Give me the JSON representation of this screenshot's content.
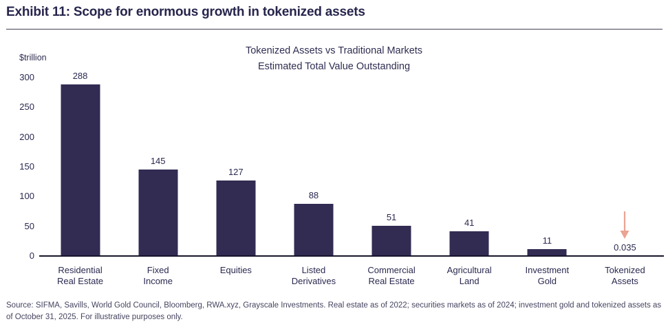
{
  "header": {
    "title": "Exhibit 11: Scope for enormous growth in tokenized assets"
  },
  "chart": {
    "unit_label": "$trillion",
    "title_line1": "Tokenized Assets vs Traditional Markets",
    "title_line2": "Estimated Total Value Outstanding"
  },
  "chart_data": {
    "type": "bar",
    "title": "Tokenized Assets vs Traditional Markets — Estimated Total Value Outstanding",
    "xlabel": "",
    "ylabel": "$trillion",
    "ylim": [
      0,
      300
    ],
    "yticks": [
      0,
      50,
      100,
      150,
      200,
      250,
      300
    ],
    "grid": false,
    "legend": false,
    "bar_color": "#322b52",
    "categories": [
      "Residential Real Estate",
      "Fixed Income",
      "Equities",
      "Listed Derivatives",
      "Commercial Real Estate",
      "Agricultural Land",
      "Investment Gold",
      "Tokenized Assets"
    ],
    "category_labels": [
      "Residential\nReal Estate",
      "Fixed\nIncome",
      "Equities",
      "Listed\nDerivatives",
      "Commercial\nReal Estate",
      "Agricultural\nLand",
      "Investment\nGold",
      "Tokenized\nAssets"
    ],
    "values": [
      288,
      145,
      127,
      88,
      51,
      41,
      11,
      0.035
    ],
    "value_labels": [
      "288",
      "145",
      "127",
      "88",
      "51",
      "41",
      "11",
      "0.035"
    ],
    "annotation": {
      "type": "down-arrow",
      "target_category": "Tokenized Assets",
      "target_index": 7,
      "color": "#eba392"
    }
  },
  "footer": {
    "source": "Source: SIFMA, Savills, World Gold Council, Bloomberg, RWA.xyz, Grayscale Investments. Real estate as of 2022; securities markets as of 2024; investment gold and tokenized assets as of October 31, 2025. For illustrative purposes only."
  }
}
